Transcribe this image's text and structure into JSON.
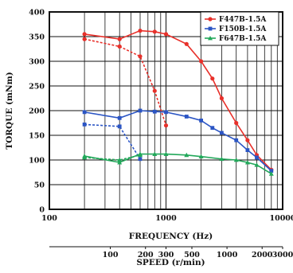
{
  "chart_data": {
    "type": "line",
    "title": "",
    "xlabel": "FREQUENCY (Hz)",
    "ylabel": "TORQUE (mNm)",
    "secondary_xlabel": "SPEED (r/min)",
    "x_scale": "log",
    "xlim": [
      100,
      10000
    ],
    "ylim": [
      0,
      400
    ],
    "y_ticks": [
      "0",
      "50",
      "100",
      "150",
      "200",
      "250",
      "300",
      "350",
      "400"
    ],
    "x_tick_values": [
      100,
      1000,
      10000
    ],
    "x_ticks": [
      "100",
      "1000",
      "10000"
    ],
    "speed_tick_values": [
      333,
      667,
      1000,
      1667,
      3333,
      6667,
      10000
    ],
    "speed_ticks": [
      "100",
      "200",
      "300",
      "500",
      "1000",
      "2000",
      "3000"
    ],
    "grid": true,
    "legend_position": "top-right",
    "series": [
      {
        "name": "F447B-1.5A",
        "color": "#e8302a",
        "marker": "circle",
        "x": [
          200,
          400,
          600,
          800,
          1000,
          1500,
          2000,
          2500,
          3000,
          4000,
          5000,
          6000,
          8000
        ],
        "y": [
          355,
          345,
          362,
          360,
          355,
          335,
          300,
          265,
          225,
          175,
          140,
          110,
          80
        ]
      },
      {
        "name": "F447B-1.5A (dashed)",
        "color": "#e8302a",
        "marker": "circle",
        "dashed": true,
        "show_in_legend": false,
        "x": [
          200,
          400,
          600,
          800,
          1000
        ],
        "y": [
          345,
          330,
          310,
          240,
          170
        ]
      },
      {
        "name": "F150B-1.5A",
        "color": "#2b55c4",
        "marker": "square",
        "x": [
          200,
          400,
          600,
          800,
          1000,
          1500,
          2000,
          2500,
          3000,
          4000,
          5000,
          6000,
          8000
        ],
        "y": [
          197,
          185,
          200,
          198,
          197,
          188,
          180,
          165,
          155,
          140,
          120,
          105,
          78
        ]
      },
      {
        "name": "F150B-1.5A (dashed)",
        "color": "#2b55c4",
        "marker": "square",
        "dashed": true,
        "show_in_legend": false,
        "x": [
          200,
          400,
          600
        ],
        "y": [
          172,
          168,
          102
        ]
      },
      {
        "name": "F647B-1.5A",
        "color": "#22a85a",
        "marker": "triangle",
        "x": [
          200,
          400,
          600,
          800,
          1000,
          1500,
          2000,
          3000,
          4000,
          5000,
          6000,
          8000
        ],
        "y": [
          108,
          95,
          112,
          112,
          112,
          110,
          107,
          102,
          100,
          95,
          90,
          72
        ]
      },
      {
        "name": "F647B-1.5A (dashed)",
        "color": "#22a85a",
        "marker": "triangle",
        "dashed": true,
        "show_in_legend": false,
        "x": [
          200,
          400,
          600
        ],
        "y": [
          105,
          100,
          110
        ]
      }
    ]
  }
}
